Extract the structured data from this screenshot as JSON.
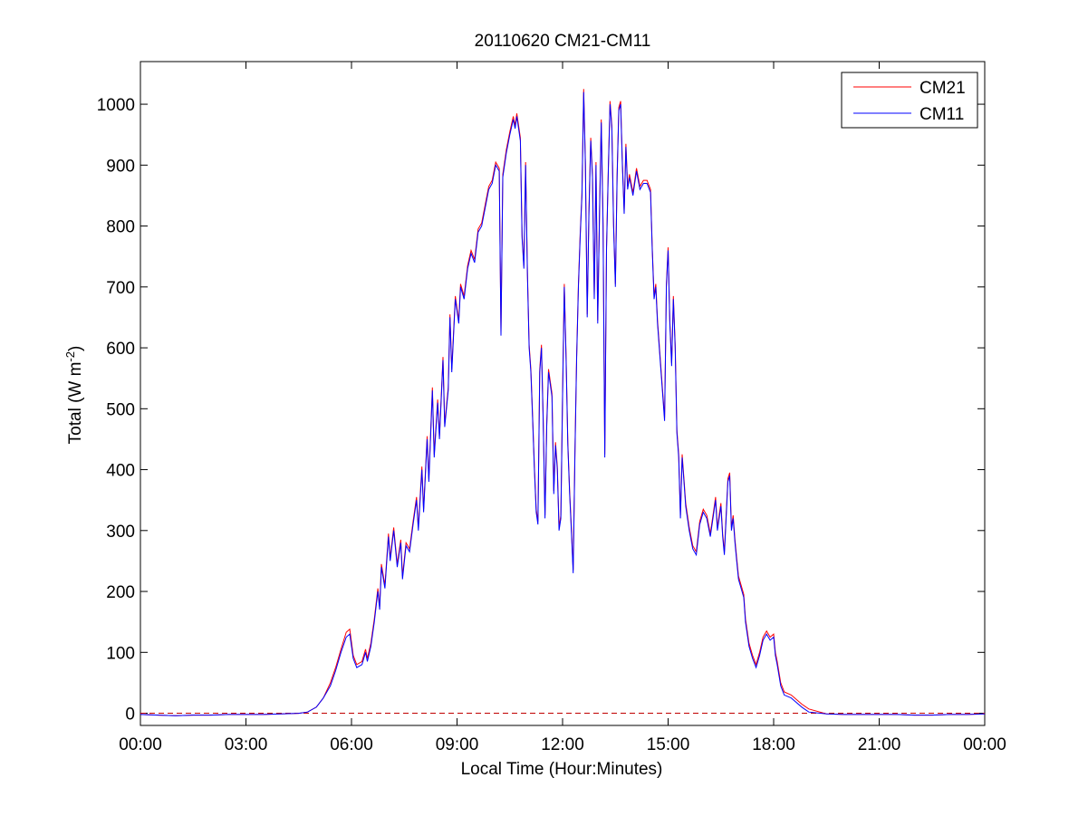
{
  "chart_data": {
    "type": "line",
    "title": "20110620 CM21-CM11",
    "xlabel": "Local Time (Hour:Minutes)",
    "ylabel": {
      "main": "Total (W m",
      "exp": "-2",
      "close": ")"
    },
    "x_unit": "hours",
    "xlim": [
      0,
      24
    ],
    "ylim": [
      -20,
      1070
    ],
    "xtick_values": [
      0,
      3,
      6,
      9,
      12,
      15,
      18,
      21,
      24
    ],
    "xtick_labels": [
      "00:00",
      "03:00",
      "06:00",
      "09:00",
      "12:00",
      "15:00",
      "18:00",
      "21:00",
      "00:00"
    ],
    "yticks": [
      0,
      100,
      200,
      300,
      400,
      500,
      600,
      700,
      800,
      900,
      1000
    ],
    "grid": false,
    "legend_position": "top-right",
    "zero_line": {
      "y": 0,
      "style": "dashed",
      "color": "#c00000"
    },
    "series": [
      {
        "name": "CM21",
        "color": "#ff0000"
      },
      {
        "name": "CM11",
        "color": "#0000ff"
      }
    ],
    "cm11_points": [
      [
        0.0,
        -2
      ],
      [
        0.5,
        -3
      ],
      [
        1.0,
        -4
      ],
      [
        1.5,
        -3
      ],
      [
        2.0,
        -3
      ],
      [
        2.5,
        -2
      ],
      [
        3.0,
        -2
      ],
      [
        3.5,
        -2
      ],
      [
        4.0,
        -1
      ],
      [
        4.5,
        0
      ],
      [
        4.75,
        2
      ],
      [
        5.0,
        10
      ],
      [
        5.2,
        25
      ],
      [
        5.4,
        45
      ],
      [
        5.55,
        70
      ],
      [
        5.7,
        100
      ],
      [
        5.85,
        125
      ],
      [
        5.95,
        130
      ],
      [
        6.05,
        90
      ],
      [
        6.15,
        75
      ],
      [
        6.3,
        80
      ],
      [
        6.4,
        100
      ],
      [
        6.45,
        85
      ],
      [
        6.55,
        110
      ],
      [
        6.65,
        150
      ],
      [
        6.75,
        200
      ],
      [
        6.8,
        170
      ],
      [
        6.85,
        240
      ],
      [
        6.95,
        205
      ],
      [
        7.05,
        290
      ],
      [
        7.1,
        250
      ],
      [
        7.2,
        300
      ],
      [
        7.3,
        240
      ],
      [
        7.4,
        280
      ],
      [
        7.45,
        220
      ],
      [
        7.55,
        275
      ],
      [
        7.65,
        265
      ],
      [
        7.75,
        310
      ],
      [
        7.85,
        350
      ],
      [
        7.9,
        300
      ],
      [
        8.0,
        400
      ],
      [
        8.05,
        330
      ],
      [
        8.15,
        450
      ],
      [
        8.2,
        380
      ],
      [
        8.3,
        530
      ],
      [
        8.35,
        420
      ],
      [
        8.45,
        510
      ],
      [
        8.5,
        450
      ],
      [
        8.6,
        580
      ],
      [
        8.65,
        470
      ],
      [
        8.75,
        530
      ],
      [
        8.8,
        650
      ],
      [
        8.85,
        560
      ],
      [
        8.95,
        680
      ],
      [
        9.05,
        640
      ],
      [
        9.1,
        700
      ],
      [
        9.2,
        680
      ],
      [
        9.3,
        730
      ],
      [
        9.4,
        755
      ],
      [
        9.5,
        740
      ],
      [
        9.6,
        790
      ],
      [
        9.7,
        800
      ],
      [
        9.8,
        830
      ],
      [
        9.9,
        860
      ],
      [
        10.0,
        870
      ],
      [
        10.1,
        900
      ],
      [
        10.2,
        890
      ],
      [
        10.25,
        620
      ],
      [
        10.3,
        880
      ],
      [
        10.4,
        920
      ],
      [
        10.5,
        950
      ],
      [
        10.6,
        975
      ],
      [
        10.65,
        960
      ],
      [
        10.7,
        980
      ],
      [
        10.8,
        940
      ],
      [
        10.85,
        780
      ],
      [
        10.9,
        730
      ],
      [
        10.95,
        900
      ],
      [
        11.0,
        720
      ],
      [
        11.05,
        600
      ],
      [
        11.1,
        560
      ],
      [
        11.15,
        480
      ],
      [
        11.2,
        400
      ],
      [
        11.25,
        330
      ],
      [
        11.3,
        310
      ],
      [
        11.35,
        560
      ],
      [
        11.4,
        600
      ],
      [
        11.45,
        480
      ],
      [
        11.5,
        320
      ],
      [
        11.55,
        470
      ],
      [
        11.6,
        560
      ],
      [
        11.7,
        520
      ],
      [
        11.75,
        360
      ],
      [
        11.8,
        440
      ],
      [
        11.85,
        400
      ],
      [
        11.9,
        300
      ],
      [
        11.95,
        320
      ],
      [
        12.0,
        520
      ],
      [
        12.05,
        700
      ],
      [
        12.1,
        580
      ],
      [
        12.15,
        440
      ],
      [
        12.2,
        360
      ],
      [
        12.25,
        300
      ],
      [
        12.3,
        230
      ],
      [
        12.35,
        420
      ],
      [
        12.4,
        580
      ],
      [
        12.45,
        700
      ],
      [
        12.5,
        780
      ],
      [
        12.55,
        850
      ],
      [
        12.6,
        1020
      ],
      [
        12.65,
        900
      ],
      [
        12.7,
        650
      ],
      [
        12.75,
        820
      ],
      [
        12.8,
        940
      ],
      [
        12.85,
        880
      ],
      [
        12.9,
        680
      ],
      [
        12.95,
        900
      ],
      [
        13.0,
        640
      ],
      [
        13.05,
        820
      ],
      [
        13.1,
        970
      ],
      [
        13.15,
        800
      ],
      [
        13.2,
        420
      ],
      [
        13.25,
        760
      ],
      [
        13.3,
        890
      ],
      [
        13.35,
        1000
      ],
      [
        13.4,
        960
      ],
      [
        13.45,
        800
      ],
      [
        13.5,
        700
      ],
      [
        13.55,
        880
      ],
      [
        13.6,
        990
      ],
      [
        13.65,
        1000
      ],
      [
        13.7,
        900
      ],
      [
        13.75,
        820
      ],
      [
        13.8,
        930
      ],
      [
        13.85,
        860
      ],
      [
        13.9,
        880
      ],
      [
        14.0,
        850
      ],
      [
        14.1,
        890
      ],
      [
        14.2,
        860
      ],
      [
        14.3,
        870
      ],
      [
        14.4,
        870
      ],
      [
        14.5,
        855
      ],
      [
        14.55,
        760
      ],
      [
        14.6,
        680
      ],
      [
        14.65,
        700
      ],
      [
        14.7,
        640
      ],
      [
        14.8,
        560
      ],
      [
        14.9,
        480
      ],
      [
        14.95,
        700
      ],
      [
        15.0,
        760
      ],
      [
        15.05,
        640
      ],
      [
        15.1,
        570
      ],
      [
        15.15,
        680
      ],
      [
        15.2,
        600
      ],
      [
        15.25,
        460
      ],
      [
        15.3,
        420
      ],
      [
        15.35,
        320
      ],
      [
        15.4,
        420
      ],
      [
        15.45,
        380
      ],
      [
        15.5,
        340
      ],
      [
        15.6,
        300
      ],
      [
        15.7,
        270
      ],
      [
        15.8,
        260
      ],
      [
        15.9,
        310
      ],
      [
        16.0,
        330
      ],
      [
        16.1,
        320
      ],
      [
        16.2,
        290
      ],
      [
        16.3,
        330
      ],
      [
        16.35,
        350
      ],
      [
        16.4,
        300
      ],
      [
        16.5,
        340
      ],
      [
        16.55,
        290
      ],
      [
        16.6,
        260
      ],
      [
        16.7,
        380
      ],
      [
        16.75,
        390
      ],
      [
        16.8,
        300
      ],
      [
        16.85,
        320
      ],
      [
        16.9,
        280
      ],
      [
        16.95,
        250
      ],
      [
        17.0,
        220
      ],
      [
        17.1,
        200
      ],
      [
        17.15,
        190
      ],
      [
        17.2,
        150
      ],
      [
        17.3,
        110
      ],
      [
        17.4,
        90
      ],
      [
        17.5,
        75
      ],
      [
        17.6,
        95
      ],
      [
        17.7,
        120
      ],
      [
        17.8,
        130
      ],
      [
        17.9,
        120
      ],
      [
        18.0,
        125
      ],
      [
        18.05,
        95
      ],
      [
        18.1,
        80
      ],
      [
        18.2,
        45
      ],
      [
        18.3,
        30
      ],
      [
        18.5,
        25
      ],
      [
        18.6,
        20
      ],
      [
        18.8,
        10
      ],
      [
        19.0,
        2
      ],
      [
        19.5,
        -1
      ],
      [
        20.0,
        -2
      ],
      [
        20.5,
        -2
      ],
      [
        21.0,
        -2
      ],
      [
        21.5,
        -2
      ],
      [
        22.0,
        -3
      ],
      [
        22.5,
        -3
      ],
      [
        23.0,
        -2
      ],
      [
        23.5,
        -2
      ],
      [
        24.0,
        -1
      ]
    ],
    "cm21_offsets": [
      {
        "from": 5.4,
        "to": 19.0,
        "delta": 5
      },
      {
        "from": 5.8,
        "to": 6.0,
        "delta": 8
      }
    ]
  }
}
